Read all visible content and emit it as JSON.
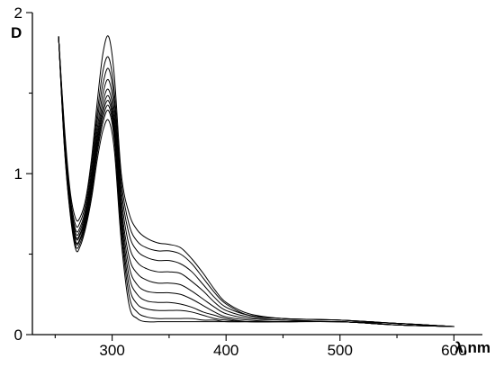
{
  "chart_data": {
    "type": "line",
    "title": "",
    "xlabel": "λ,nm",
    "ylabel": "D",
    "xlim": [
      230,
      625
    ],
    "ylim": [
      0,
      2
    ],
    "x_ticks_major": [
      300,
      400,
      500,
      600
    ],
    "x_ticks_minor": [
      250,
      350,
      450,
      550
    ],
    "y_ticks_major": [
      0,
      1,
      2
    ],
    "y_ticks_minor": [
      0.5,
      1.5
    ],
    "grid": false,
    "legend": "none",
    "line_color": "#000000",
    "series": [
      {
        "x": [
          253,
          258,
          263,
          268,
          272,
          277,
          282,
          287,
          292,
          297,
          302,
          308,
          315,
          322,
          330,
          340,
          350,
          360,
          370,
          380,
          390,
          400,
          420,
          450,
          500,
          550,
          600
        ],
        "y": [
          1.85,
          1.3,
          0.9,
          0.72,
          0.73,
          0.85,
          1.1,
          1.45,
          1.75,
          1.85,
          1.6,
          1.0,
          0.75,
          0.65,
          0.6,
          0.57,
          0.56,
          0.54,
          0.47,
          0.38,
          0.28,
          0.2,
          0.13,
          0.1,
          0.09,
          0.07,
          0.05
        ]
      },
      {
        "x": [
          253,
          258,
          263,
          268,
          272,
          277,
          282,
          287,
          292,
          297,
          302,
          308,
          315,
          322,
          330,
          340,
          350,
          360,
          370,
          380,
          390,
          400,
          420,
          450,
          500,
          550,
          600
        ],
        "y": [
          1.85,
          1.28,
          0.87,
          0.68,
          0.7,
          0.82,
          1.06,
          1.38,
          1.64,
          1.72,
          1.5,
          0.95,
          0.68,
          0.58,
          0.54,
          0.52,
          0.52,
          0.5,
          0.44,
          0.35,
          0.26,
          0.19,
          0.12,
          0.1,
          0.09,
          0.07,
          0.05
        ]
      },
      {
        "x": [
          253,
          258,
          263,
          268,
          272,
          277,
          282,
          287,
          292,
          297,
          302,
          308,
          315,
          322,
          330,
          340,
          350,
          360,
          370,
          380,
          390,
          400,
          420,
          450,
          500,
          550,
          600
        ],
        "y": [
          1.85,
          1.26,
          0.85,
          0.65,
          0.67,
          0.79,
          1.02,
          1.33,
          1.56,
          1.65,
          1.44,
          0.9,
          0.62,
          0.52,
          0.48,
          0.46,
          0.46,
          0.44,
          0.39,
          0.31,
          0.23,
          0.17,
          0.12,
          0.1,
          0.09,
          0.07,
          0.05
        ]
      },
      {
        "x": [
          253,
          258,
          263,
          268,
          272,
          277,
          282,
          287,
          292,
          297,
          302,
          308,
          315,
          322,
          330,
          340,
          350,
          360,
          370,
          380,
          390,
          400,
          420,
          450,
          500,
          550,
          600
        ],
        "y": [
          1.85,
          1.24,
          0.83,
          0.63,
          0.65,
          0.77,
          0.99,
          1.28,
          1.5,
          1.58,
          1.38,
          0.85,
          0.55,
          0.45,
          0.41,
          0.39,
          0.39,
          0.38,
          0.33,
          0.27,
          0.2,
          0.15,
          0.11,
          0.09,
          0.08,
          0.07,
          0.05
        ]
      },
      {
        "x": [
          253,
          258,
          263,
          268,
          272,
          277,
          282,
          287,
          292,
          297,
          302,
          308,
          315,
          322,
          330,
          340,
          350,
          360,
          370,
          380,
          390,
          400,
          420,
          450,
          500,
          550,
          600
        ],
        "y": [
          1.85,
          1.22,
          0.81,
          0.61,
          0.63,
          0.75,
          0.96,
          1.24,
          1.45,
          1.52,
          1.33,
          0.8,
          0.48,
          0.38,
          0.34,
          0.32,
          0.32,
          0.31,
          0.27,
          0.22,
          0.17,
          0.13,
          0.1,
          0.09,
          0.08,
          0.07,
          0.05
        ]
      },
      {
        "x": [
          253,
          258,
          263,
          268,
          272,
          277,
          282,
          287,
          292,
          297,
          302,
          308,
          315,
          322,
          330,
          340,
          350,
          360,
          370,
          380,
          390,
          400,
          420,
          450,
          500,
          550,
          600
        ],
        "y": [
          1.85,
          1.21,
          0.8,
          0.6,
          0.62,
          0.73,
          0.94,
          1.21,
          1.41,
          1.48,
          1.29,
          0.76,
          0.42,
          0.31,
          0.27,
          0.26,
          0.26,
          0.25,
          0.22,
          0.18,
          0.14,
          0.11,
          0.09,
          0.08,
          0.08,
          0.06,
          0.05
        ]
      },
      {
        "x": [
          253,
          258,
          263,
          268,
          272,
          277,
          282,
          287,
          292,
          297,
          302,
          308,
          315,
          322,
          330,
          340,
          350,
          360,
          370,
          380,
          390,
          400,
          420,
          450,
          500,
          550,
          600
        ],
        "y": [
          1.85,
          1.2,
          0.79,
          0.58,
          0.6,
          0.72,
          0.92,
          1.18,
          1.38,
          1.45,
          1.26,
          0.72,
          0.36,
          0.25,
          0.21,
          0.2,
          0.2,
          0.19,
          0.17,
          0.14,
          0.12,
          0.1,
          0.08,
          0.08,
          0.08,
          0.06,
          0.05
        ]
      },
      {
        "x": [
          253,
          258,
          263,
          268,
          272,
          277,
          282,
          287,
          292,
          297,
          302,
          308,
          315,
          322,
          330,
          340,
          350,
          360,
          370,
          380,
          390,
          400,
          420,
          450,
          500,
          550,
          600
        ],
        "y": [
          1.85,
          1.19,
          0.78,
          0.57,
          0.59,
          0.7,
          0.9,
          1.16,
          1.35,
          1.42,
          1.23,
          0.68,
          0.3,
          0.19,
          0.16,
          0.15,
          0.15,
          0.15,
          0.14,
          0.12,
          0.1,
          0.09,
          0.08,
          0.08,
          0.08,
          0.06,
          0.05
        ]
      },
      {
        "x": [
          253,
          258,
          263,
          268,
          272,
          277,
          282,
          287,
          292,
          297,
          302,
          308,
          315,
          322,
          330,
          340,
          350,
          360,
          370,
          380,
          390,
          400,
          420,
          450,
          500,
          550,
          600
        ],
        "y": [
          1.85,
          1.18,
          0.77,
          0.55,
          0.57,
          0.69,
          0.88,
          1.13,
          1.32,
          1.39,
          1.2,
          0.64,
          0.24,
          0.14,
          0.11,
          0.1,
          0.1,
          0.1,
          0.1,
          0.09,
          0.09,
          0.08,
          0.08,
          0.08,
          0.08,
          0.06,
          0.05
        ]
      },
      {
        "x": [
          253,
          258,
          263,
          268,
          272,
          277,
          282,
          287,
          292,
          297,
          302,
          308,
          315,
          322,
          330,
          340,
          350,
          360,
          370,
          380,
          390,
          400,
          420,
          450,
          500,
          550,
          600
        ],
        "y": [
          1.85,
          1.17,
          0.76,
          0.53,
          0.55,
          0.67,
          0.85,
          1.09,
          1.27,
          1.33,
          1.14,
          0.58,
          0.18,
          0.1,
          0.08,
          0.08,
          0.08,
          0.08,
          0.08,
          0.08,
          0.08,
          0.08,
          0.08,
          0.08,
          0.08,
          0.06,
          0.05
        ]
      }
    ]
  }
}
